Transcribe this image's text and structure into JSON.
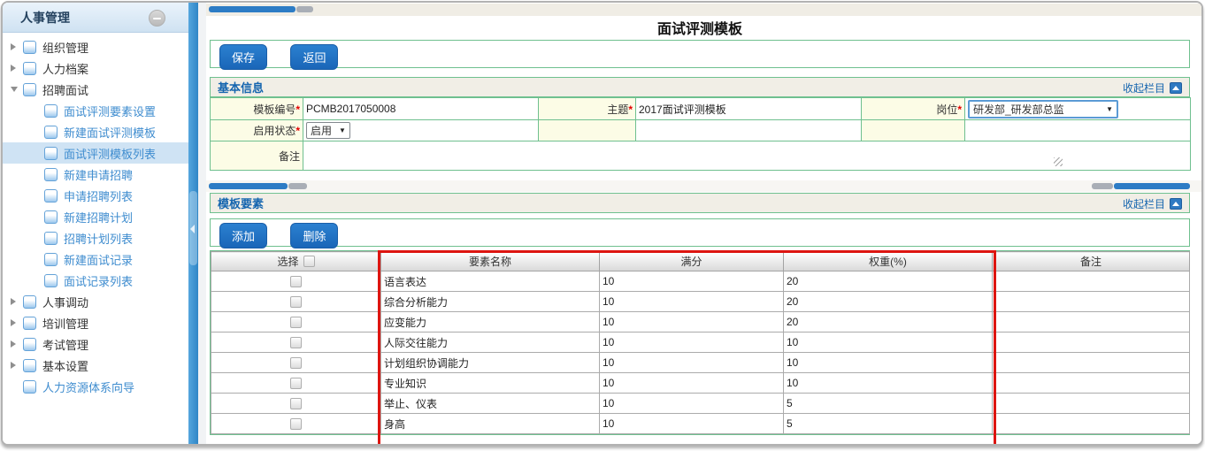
{
  "sidebar": {
    "title": "人事管理",
    "collapse_icon": "minus-circle",
    "items": [
      {
        "label": "组织管理",
        "level": 0,
        "arrow": "collapsed",
        "link": false,
        "selected": false
      },
      {
        "label": "人力档案",
        "level": 0,
        "arrow": "collapsed",
        "link": false,
        "selected": false
      },
      {
        "label": "招聘面试",
        "level": 0,
        "arrow": "expanded",
        "link": false,
        "selected": false
      },
      {
        "label": "面试评测要素设置",
        "level": 1,
        "arrow": "none",
        "link": true,
        "selected": false
      },
      {
        "label": "新建面试评测模板",
        "level": 1,
        "arrow": "none",
        "link": true,
        "selected": false
      },
      {
        "label": "面试评测模板列表",
        "level": 1,
        "arrow": "none",
        "link": true,
        "selected": true
      },
      {
        "label": "新建申请招聘",
        "level": 1,
        "arrow": "none",
        "link": true,
        "selected": false
      },
      {
        "label": "申请招聘列表",
        "level": 1,
        "arrow": "none",
        "link": true,
        "selected": false
      },
      {
        "label": "新建招聘计划",
        "level": 1,
        "arrow": "none",
        "link": true,
        "selected": false
      },
      {
        "label": "招聘计划列表",
        "level": 1,
        "arrow": "none",
        "link": true,
        "selected": false
      },
      {
        "label": "新建面试记录",
        "level": 1,
        "arrow": "none",
        "link": true,
        "selected": false
      },
      {
        "label": "面试记录列表",
        "level": 1,
        "arrow": "none",
        "link": true,
        "selected": false
      },
      {
        "label": "人事调动",
        "level": 0,
        "arrow": "collapsed",
        "link": false,
        "selected": false
      },
      {
        "label": "培训管理",
        "level": 0,
        "arrow": "collapsed",
        "link": false,
        "selected": false
      },
      {
        "label": "考试管理",
        "level": 0,
        "arrow": "collapsed",
        "link": false,
        "selected": false
      },
      {
        "label": "基本设置",
        "level": 0,
        "arrow": "collapsed",
        "link": false,
        "selected": false
      },
      {
        "label": "人力资源体系向导",
        "level": 0,
        "arrow": "none",
        "link": true,
        "selected": false
      }
    ]
  },
  "page": {
    "title": "面试评测模板"
  },
  "toolbar1": {
    "save_label": "保存",
    "back_label": "返回"
  },
  "basic_info": {
    "header": "基本信息",
    "collapse_label": "收起栏目",
    "collapse_icon": "arrow-up-square",
    "fields": {
      "template_no_label": "模板编号",
      "template_no_value": "PCMB2017050008",
      "subject_label": "主题",
      "subject_value": "2017面试评测模板",
      "position_label": "岗位",
      "position_value": "研发部_研发部总监",
      "status_label": "启用状态",
      "status_value": "启用",
      "remark_label": "备注",
      "required_mark": "*",
      "select_caret": "▼"
    }
  },
  "elements": {
    "header": "模板要素",
    "collapse_label": "收起栏目",
    "collapse_icon": "arrow-up-square",
    "add_label": "添加",
    "delete_label": "删除",
    "table": {
      "columns": [
        "选择",
        "要素名称",
        "满分",
        "权重(%)",
        "备注"
      ],
      "rows": [
        {
          "name": "语言表达",
          "full_score": "10",
          "weight": "20",
          "remark": ""
        },
        {
          "name": "综合分析能力",
          "full_score": "10",
          "weight": "20",
          "remark": ""
        },
        {
          "name": "应变能力",
          "full_score": "10",
          "weight": "20",
          "remark": ""
        },
        {
          "name": "人际交往能力",
          "full_score": "10",
          "weight": "10",
          "remark": ""
        },
        {
          "name": "计划组织协调能力",
          "full_score": "10",
          "weight": "10",
          "remark": ""
        },
        {
          "name": "专业知识",
          "full_score": "10",
          "weight": "10",
          "remark": ""
        },
        {
          "name": "举止、仪表",
          "full_score": "10",
          "weight": "5",
          "remark": ""
        },
        {
          "name": "身高",
          "full_score": "10",
          "weight": "5",
          "remark": ""
        }
      ]
    }
  },
  "colors": {
    "accent_blue": "#1a66b8",
    "splitter_blue": "#2f86c6",
    "section_green_border": "#6fc08f",
    "label_yellow": "#fcfce6",
    "header_beige": "#f1eee6",
    "annotation_red": "#dd1510",
    "link_blue": "#3e8ccf"
  }
}
